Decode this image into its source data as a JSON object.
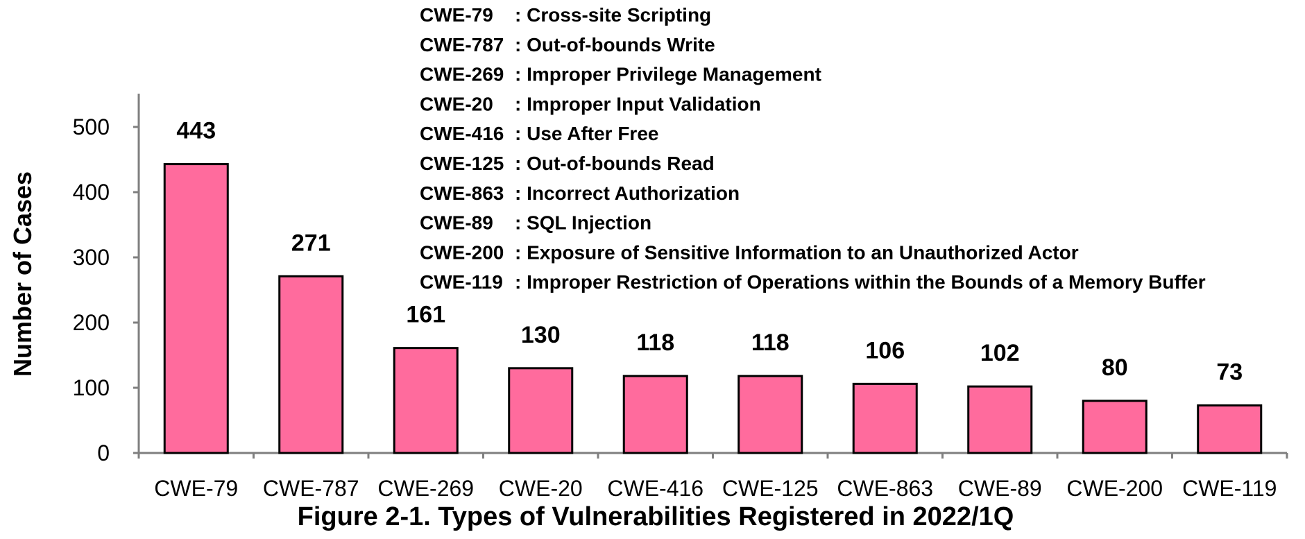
{
  "chart_data": {
    "type": "bar",
    "title": "Figure 2-1. Types of Vulnerabilities Registered in 2022/1Q",
    "xlabel": "",
    "ylabel": "Number of Cases",
    "ylim": [
      0,
      500
    ],
    "yticks": [
      0,
      100,
      200,
      300,
      400,
      500
    ],
    "grid": false,
    "categories": [
      "CWE-79",
      "CWE-787",
      "CWE-269",
      "CWE-20",
      "CWE-416",
      "CWE-125",
      "CWE-863",
      "CWE-89",
      "CWE-200",
      "CWE-119"
    ],
    "values": [
      443,
      271,
      161,
      130,
      118,
      118,
      106,
      102,
      80,
      73
    ],
    "bar_color": "#ff6b9d",
    "legend_placement": "top",
    "legend": [
      {
        "code": "CWE-79",
        "desc": ": Cross-site Scripting"
      },
      {
        "code": "CWE-787",
        "desc": ": Out-of-bounds Write"
      },
      {
        "code": "CWE-269",
        "desc": ": Improper Privilege Management"
      },
      {
        "code": "CWE-20",
        "desc": ": Improper Input Validation"
      },
      {
        "code": "CWE-416",
        "desc": ": Use After Free"
      },
      {
        "code": "CWE-125",
        "desc": ": Out-of-bounds Read"
      },
      {
        "code": "CWE-863",
        "desc": ": Incorrect Authorization"
      },
      {
        "code": "CWE-89",
        "desc": ": SQL Injection"
      },
      {
        "code": "CWE-200",
        "desc": ": Exposure of Sensitive Information to an Unauthorized Actor"
      },
      {
        "code": "CWE-119",
        "desc": ": Improper Restriction of Operations within the Bounds of a Memory Buffer"
      }
    ]
  }
}
